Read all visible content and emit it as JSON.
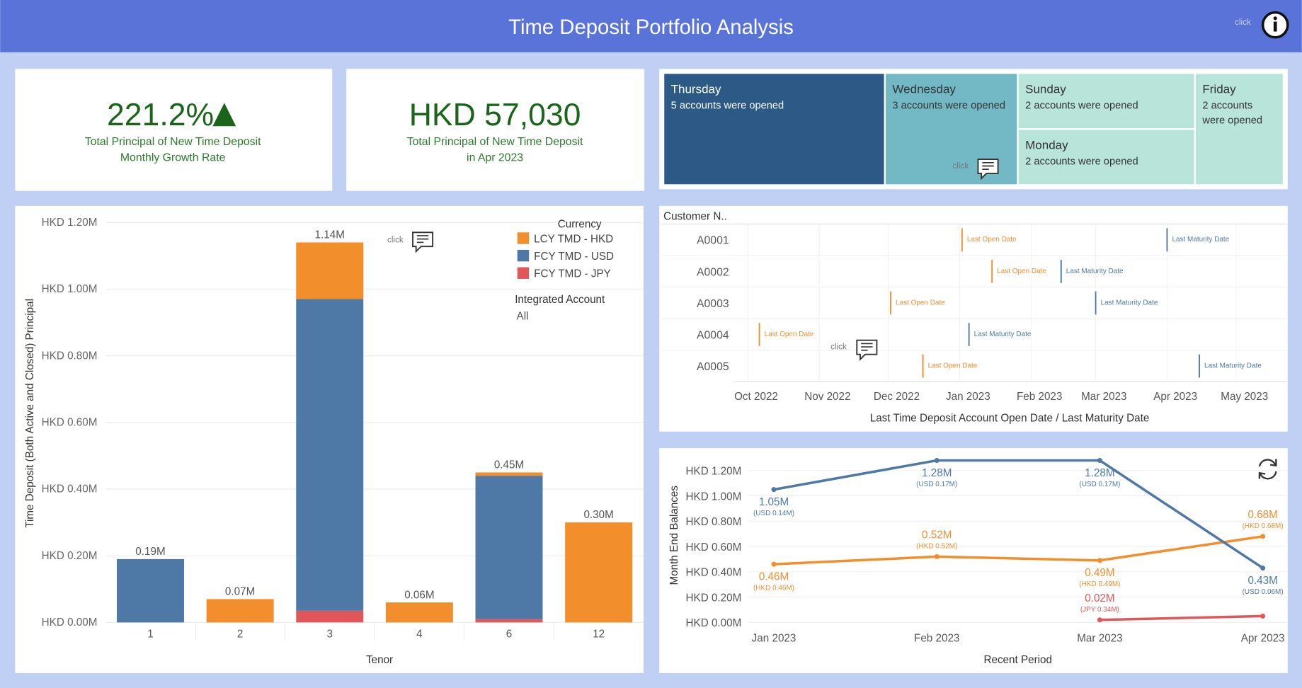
{
  "header": {
    "title": "Time Deposit Portfolio Analysis",
    "hint": "click"
  },
  "kpis": [
    {
      "value": "221.2%",
      "caption": [
        "Total Principal of New Time Deposit",
        "Monthly Growth Rate"
      ]
    },
    {
      "value": "HKD 57,030",
      "caption": [
        "Total Principal of New Time Deposit",
        "in Apr 2023"
      ]
    }
  ],
  "chart_data": [
    {
      "type": "treemap",
      "categories": [
        "Thursday",
        "Wednesday",
        "Sunday",
        "Monday",
        "Friday"
      ],
      "values": [
        5,
        3,
        2,
        2,
        2
      ],
      "value_labels": [
        "5 accounts were opened",
        "3 accounts were opened",
        "2 accounts were opened",
        "2 accounts were opened",
        "2 accounts were opened"
      ],
      "colors": [
        "#2c5985",
        "#72b9c5",
        "#b9e4d9",
        "#b9e4d9",
        "#b9e4d9"
      ]
    },
    {
      "type": "bar",
      "stacked": true,
      "xlabel": "Tenor",
      "ylabel": "Time Deposit (Both Active and Closed) Principal",
      "legend_title": "Currency",
      "filter": {
        "label": "Integrated Account",
        "value": "All"
      },
      "categories": [
        "1",
        "2",
        "3",
        "4",
        "6",
        "12"
      ],
      "series": [
        {
          "name": "LCY TMD - HKD",
          "color": "#f28e2b",
          "values": [
            0,
            70000,
            170000,
            60000,
            10000,
            300000
          ]
        },
        {
          "name": "FCY TMD - USD",
          "color": "#4e79a7",
          "values": [
            190000,
            0,
            935000,
            0,
            430000,
            0
          ]
        },
        {
          "name": "FCY TMD - JPY",
          "color": "#e15759",
          "values": [
            0,
            0,
            35000,
            0,
            10000,
            0
          ]
        }
      ],
      "totals": [
        190000,
        70000,
        1140000,
        60000,
        450000,
        300000
      ],
      "total_labels": [
        "0.19M",
        "0.07M",
        "1.14M",
        "0.06M",
        "0.45M",
        "0.30M"
      ],
      "ylim": [
        0,
        1200000
      ],
      "yticks": [
        {
          "value": 0,
          "label": "HKD 0.00M"
        },
        {
          "value": 200000,
          "label": "HKD 0.20M"
        },
        {
          "value": 400000,
          "label": "HKD 0.40M"
        },
        {
          "value": 600000,
          "label": "HKD 0.60M"
        },
        {
          "value": 800000,
          "label": "HKD 0.80M"
        },
        {
          "value": 1000000,
          "label": "HKD 1.00M"
        },
        {
          "value": 1200000,
          "label": "HKD 1.20M"
        }
      ],
      "grid": true
    },
    {
      "type": "timeline",
      "ylabel": "Customer N..",
      "xlabel": "Last Time Deposit Account Open Date / Last Maturity Date",
      "categories": [
        "A0001",
        "A0002",
        "A0003",
        "A0004",
        "A0005"
      ],
      "series": [
        {
          "name": "Last Open Date",
          "color": "#f28e2b",
          "values": [
            "2023-01-02",
            "2023-01-15",
            "2022-12-02",
            "2022-10-06",
            "2022-12-16"
          ]
        },
        {
          "name": "Last Maturity Date",
          "color": "#4e79a7",
          "values": [
            "2023-04-01",
            "2023-02-14",
            "2023-03-01",
            "2023-01-05",
            "2023-04-15"
          ]
        }
      ],
      "xlim": [
        "2022-09-25",
        "2023-05-23"
      ],
      "xticks": [
        {
          "value": "2022-10-01",
          "label": "Oct 2022"
        },
        {
          "value": "2022-11-01",
          "label": "Nov 2022"
        },
        {
          "value": "2022-12-01",
          "label": "Dec 2022"
        },
        {
          "value": "2023-01-01",
          "label": "Jan 2023"
        },
        {
          "value": "2023-02-01",
          "label": "Feb 2023"
        },
        {
          "value": "2023-03-01",
          "label": "Mar 2023"
        },
        {
          "value": "2023-04-01",
          "label": "Apr 2023"
        },
        {
          "value": "2023-05-01",
          "label": "May 2023"
        }
      ]
    },
    {
      "type": "line",
      "xlabel": "Recent Period",
      "ylabel": "Month End Balances",
      "categories": [
        "Jan 2023",
        "Feb 2023",
        "Mar 2023",
        "Apr 2023"
      ],
      "series": [
        {
          "color": "#f28e2b",
          "values": [
            460000,
            520000,
            490000,
            680000
          ],
          "value_labels": [
            "0.46M",
            "0.52M",
            "0.49M",
            "0.68M"
          ],
          "sub_labels": [
            "(HKD 0.46M)",
            "(HKD 0.52M)",
            "(HKD 0.49M)",
            "(HKD 0.68M)"
          ]
        },
        {
          "color": "#4e79a7",
          "values": [
            1050000,
            1280000,
            1280000,
            430000
          ],
          "value_labels": [
            "1.05M",
            "1.28M",
            "1.28M",
            "0.43M"
          ],
          "sub_labels": [
            "(USD 0.14M)",
            "(USD 0.17M)",
            "(USD 0.17M)",
            "(USD 0.06M)"
          ]
        },
        {
          "color": "#e15759",
          "values": [
            null,
            null,
            20000,
            50000
          ],
          "value_labels": [
            null,
            null,
            "0.02M",
            null
          ],
          "sub_labels": [
            null,
            null,
            "(JPY 0.34M)",
            null
          ]
        }
      ],
      "ylim": [
        0,
        1200000
      ],
      "yticks": [
        {
          "value": 0,
          "label": "HKD 0.00M"
        },
        {
          "value": 200000,
          "label": "HKD 0.20M"
        },
        {
          "value": 400000,
          "label": "HKD 0.40M"
        },
        {
          "value": 600000,
          "label": "HKD 0.60M"
        },
        {
          "value": 800000,
          "label": "HKD 0.80M"
        },
        {
          "value": 1000000,
          "label": "HKD 1.00M"
        },
        {
          "value": 1200000,
          "label": "HKD 1.20M"
        }
      ],
      "grid": true
    }
  ]
}
